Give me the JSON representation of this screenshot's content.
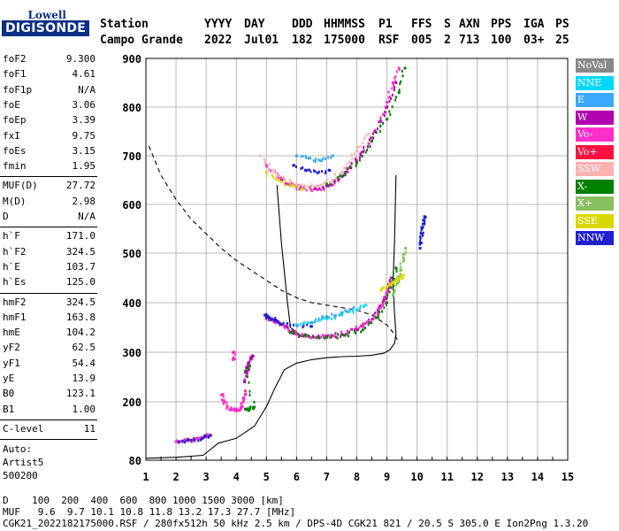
{
  "logo": {
    "top": "Lowell",
    "bottom": "DIGISONDE"
  },
  "header": {
    "row1": [
      {
        "key": "station",
        "text": "Station"
      },
      {
        "key": "yyyy",
        "text": "YYYY"
      },
      {
        "key": "day",
        "text": "DAY"
      },
      {
        "key": "ddd",
        "text": "DDD"
      },
      {
        "key": "hhmmss",
        "text": "HHMMSS"
      },
      {
        "key": "p1",
        "text": "P1"
      },
      {
        "key": "ffs",
        "text": "FFS"
      },
      {
        "key": "s",
        "text": "S"
      },
      {
        "key": "axn",
        "text": "AXN"
      },
      {
        "key": "pps",
        "text": "PPS"
      },
      {
        "key": "iga",
        "text": "IGA"
      },
      {
        "key": "ps",
        "text": "PS"
      }
    ],
    "row2": [
      {
        "key": "station",
        "text": "Campo Grande"
      },
      {
        "key": "yyyy",
        "text": "2022"
      },
      {
        "key": "day",
        "text": "Jul01"
      },
      {
        "key": "ddd",
        "text": "182"
      },
      {
        "key": "hhmmss",
        "text": "175000"
      },
      {
        "key": "p1",
        "text": "RSF"
      },
      {
        "key": "ffs",
        "text": "005"
      },
      {
        "key": "s",
        "text": "2"
      },
      {
        "key": "axn",
        "text": "713"
      },
      {
        "key": "pps",
        "text": "100"
      },
      {
        "key": "iga",
        "text": "03+"
      },
      {
        "key": "ps",
        "text": "25"
      }
    ]
  },
  "params": {
    "group1": [
      {
        "name": "foF2",
        "value": "9.300"
      },
      {
        "name": "foF1",
        "value": "4.61"
      },
      {
        "name": "foF1p",
        "value": "N/A"
      },
      {
        "name": "foE",
        "value": "3.06"
      },
      {
        "name": "foEp",
        "value": "3.39"
      },
      {
        "name": "fxI",
        "value": "9.75"
      },
      {
        "name": "foEs",
        "value": "3.15"
      },
      {
        "name": "fmin",
        "value": "1.95"
      }
    ],
    "group2": [
      {
        "name": "MUF(D)",
        "value": "27.72"
      },
      {
        "name": "M(D)",
        "value": "2.98"
      },
      {
        "name": "D",
        "value": "N/A"
      }
    ],
    "group3": [
      {
        "name": "h`F",
        "value": "171.0"
      },
      {
        "name": "h`F2",
        "value": "324.5"
      },
      {
        "name": "h`E",
        "value": "103.7"
      },
      {
        "name": "h`Es",
        "value": "125.0"
      }
    ],
    "group4": [
      {
        "name": "hmF2",
        "value": "324.5"
      },
      {
        "name": "hmF1",
        "value": "163.8"
      },
      {
        "name": "hmE",
        "value": "104.2"
      },
      {
        "name": "yF2",
        "value": "62.5"
      },
      {
        "name": "yF1",
        "value": "54.4"
      },
      {
        "name": "yE",
        "value": "13.9"
      },
      {
        "name": "B0",
        "value": "123.1"
      },
      {
        "name": "B1",
        "value": "1.00"
      }
    ],
    "group5": [
      {
        "name": "C-level",
        "value": "11"
      }
    ],
    "auto": [
      "Auto:",
      "Artist5",
      "500200"
    ]
  },
  "legend": [
    {
      "label": "NoVal",
      "color": "#888888"
    },
    {
      "label": "NNE",
      "color": "#00d8ff"
    },
    {
      "label": "E",
      "color": "#3aa8ff"
    },
    {
      "label": "W",
      "color": "#b000b0"
    },
    {
      "label": "Vo-",
      "color": "#ff2ec8"
    },
    {
      "label": "Vo+",
      "color": "#ff1040"
    },
    {
      "label": "SSW",
      "color": "#ffb0b0"
    },
    {
      "label": "X-",
      "color": "#008000"
    },
    {
      "label": "X+",
      "color": "#88c060"
    },
    {
      "label": "SSE",
      "color": "#d8d800"
    },
    {
      "label": "NNW",
      "color": "#2020d0"
    }
  ],
  "footer": {
    "line1": "D    100  200  400  600  800 1000 1500 3000 [km]",
    "line2": "MUF   9.6  9.7 10.1 10.8 11.8 13.2 17.3 27.7 [MHz]",
    "line3": "CGK21_2022182175000.RSF / 280fx512h 50 kHz 2.5 km / DPS-4D CGK21 821 / 20.5 S 305.0 E Ion2Png 1.3.20"
  },
  "chart_data": {
    "type": "scatter",
    "xlim": [
      1,
      15
    ],
    "ylim": [
      80,
      900
    ],
    "xticks": [
      "1",
      "2",
      "3",
      "4",
      "5",
      "6",
      "7",
      "8",
      "9",
      "10",
      "11",
      "12",
      "13",
      "14",
      "15"
    ],
    "yticks": [
      "80",
      "200",
      "300",
      "400",
      "500",
      "600",
      "700",
      "800",
      "900"
    ],
    "grid": true,
    "legend_position": "right",
    "series": [
      {
        "name": "Es trace (Vo-)",
        "color": "#ff2ec8",
        "points": [
          [
            2.0,
            118
          ],
          [
            2.2,
            119
          ],
          [
            2.4,
            120
          ],
          [
            2.6,
            122
          ],
          [
            2.8,
            125
          ],
          [
            3.0,
            128
          ],
          [
            3.1,
            132
          ]
        ]
      },
      {
        "name": "Es trace (NNW)",
        "color": "#2020d0",
        "points": [
          [
            2.1,
            118
          ],
          [
            2.5,
            121
          ],
          [
            2.9,
            126
          ],
          [
            3.15,
            131
          ]
        ]
      },
      {
        "name": "E/F1 low trace",
        "color": "#ff2ec8",
        "points": [
          [
            3.55,
            215
          ],
          [
            3.6,
            200
          ],
          [
            3.7,
            190
          ],
          [
            3.8,
            184
          ],
          [
            3.95,
            182
          ],
          [
            4.1,
            183
          ],
          [
            4.2,
            190
          ],
          [
            4.25,
            205
          ],
          [
            4.3,
            222
          ]
        ]
      },
      {
        "name": "E/F1 low trace (X-)",
        "color": "#008000",
        "points": [
          [
            4.3,
            185
          ],
          [
            4.45,
            186
          ],
          [
            4.6,
            189
          ],
          [
            4.3,
            260
          ],
          [
            4.45,
            272
          ]
        ]
      },
      {
        "name": "F1 cusp",
        "color": "#b000b0",
        "points": [
          [
            4.28,
            240
          ],
          [
            4.35,
            262
          ],
          [
            4.42,
            278
          ],
          [
            4.5,
            288
          ],
          [
            4.55,
            292
          ]
        ]
      },
      {
        "name": "F1 cusp (Vo-)",
        "color": "#ff2ec8",
        "points": [
          [
            3.9,
            285
          ],
          [
            3.93,
            300
          ]
        ]
      },
      {
        "name": "F2 O-trace (W)",
        "color": "#b000b0",
        "points": [
          [
            5.0,
            370
          ],
          [
            5.2,
            366
          ],
          [
            5.4,
            360
          ],
          [
            5.7,
            350
          ],
          [
            5.9,
            338
          ],
          [
            6.2,
            333
          ],
          [
            6.6,
            330
          ],
          [
            7.0,
            331
          ],
          [
            7.5,
            336
          ],
          [
            8.0,
            346
          ],
          [
            8.4,
            360
          ],
          [
            8.7,
            380
          ],
          [
            8.9,
            405
          ],
          [
            9.05,
            430
          ],
          [
            9.15,
            450
          ]
        ]
      },
      {
        "name": "F2 O-trace (Vo-)",
        "color": "#ff2ec8",
        "points": [
          [
            5.3,
            360
          ],
          [
            5.6,
            352
          ],
          [
            6.0,
            336
          ],
          [
            6.4,
            332
          ],
          [
            6.8,
            330
          ],
          [
            7.2,
            333
          ],
          [
            7.7,
            340
          ],
          [
            8.2,
            352
          ],
          [
            8.6,
            372
          ],
          [
            8.85,
            395
          ],
          [
            9.0,
            420
          ],
          [
            9.1,
            440
          ]
        ]
      },
      {
        "name": "F2 O-trace (NNW)",
        "color": "#2020d0",
        "points": [
          [
            4.95,
            375
          ],
          [
            5.1,
            370
          ],
          [
            5.3,
            364
          ],
          [
            5.5,
            356
          ],
          [
            6.0,
            355
          ],
          [
            6.5,
            352
          ]
        ]
      },
      {
        "name": "F2 X-trace (X-)",
        "color": "#008000",
        "points": [
          [
            5.8,
            340
          ],
          [
            6.3,
            334
          ],
          [
            7.0,
            330
          ],
          [
            7.6,
            334
          ],
          [
            8.2,
            345
          ],
          [
            8.7,
            370
          ],
          [
            9.0,
            400
          ],
          [
            9.2,
            440
          ],
          [
            9.3,
            470
          ]
        ]
      },
      {
        "name": "F2 X-trace (X+)",
        "color": "#88c060",
        "points": [
          [
            9.2,
            415
          ],
          [
            9.35,
            440
          ],
          [
            9.45,
            465
          ],
          [
            9.55,
            490
          ],
          [
            9.62,
            510
          ]
        ]
      },
      {
        "name": "Oblique (NNE)",
        "color": "#00d8ff",
        "points": [
          [
            6.0,
            355
          ],
          [
            6.5,
            360
          ],
          [
            7.0,
            368
          ],
          [
            7.5,
            375
          ],
          [
            8.0,
            385
          ],
          [
            8.3,
            395
          ]
        ]
      },
      {
        "name": "Oblique (E)",
        "color": "#3aa8ff",
        "points": [
          [
            6.5,
            360
          ],
          [
            7.0,
            372
          ],
          [
            7.5,
            380
          ],
          [
            7.9,
            390
          ]
        ]
      },
      {
        "name": "Oblique (SSE)",
        "color": "#d8d800",
        "points": [
          [
            8.8,
            425
          ],
          [
            9.0,
            432
          ],
          [
            9.2,
            440
          ],
          [
            9.4,
            448
          ],
          [
            9.55,
            455
          ]
        ]
      },
      {
        "name": "High trace (NNW)",
        "color": "#2020d0",
        "points": [
          [
            10.1,
            520
          ],
          [
            10.15,
            540
          ],
          [
            10.2,
            560
          ],
          [
            10.25,
            575
          ],
          [
            10.1,
            510
          ]
        ]
      },
      {
        "name": "Multi-hop (Vo-)",
        "color": "#ff2ec8",
        "points": [
          [
            5.0,
            680
          ],
          [
            5.4,
            655
          ],
          [
            5.8,
            640
          ],
          [
            6.2,
            632
          ],
          [
            6.7,
            630
          ],
          [
            7.2,
            640
          ],
          [
            7.6,
            665
          ],
          [
            8.0,
            690
          ],
          [
            8.4,
            725
          ],
          [
            8.8,
            770
          ],
          [
            9.0,
            810
          ],
          [
            9.2,
            850
          ],
          [
            9.4,
            880
          ]
        ]
      },
      {
        "name": "Multi-hop (W)",
        "color": "#b000b0",
        "points": [
          [
            5.5,
            650
          ],
          [
            6.0,
            636
          ],
          [
            6.6,
            632
          ],
          [
            7.0,
            638
          ],
          [
            7.4,
            652
          ],
          [
            7.8,
            675
          ],
          [
            8.2,
            708
          ],
          [
            8.6,
            750
          ],
          [
            9.0,
            800
          ],
          [
            9.3,
            850
          ]
        ]
      },
      {
        "name": "Multi-hop (X-)",
        "color": "#008000",
        "points": [
          [
            7.0,
            642
          ],
          [
            7.5,
            658
          ],
          [
            8.0,
            685
          ],
          [
            8.5,
            730
          ],
          [
            9.0,
            775
          ],
          [
            9.4,
            830
          ],
          [
            9.6,
            880
          ]
        ]
      },
      {
        "name": "Multi-hop (SSE)",
        "color": "#d8d800",
        "points": [
          [
            5.0,
            665
          ],
          [
            5.4,
            650
          ],
          [
            5.8,
            638
          ],
          [
            6.2,
            632
          ]
        ]
      },
      {
        "name": "Multi-hop (SSW)",
        "color": "#ffb0b0",
        "points": [
          [
            4.8,
            700
          ],
          [
            5.2,
            670
          ],
          [
            5.6,
            650
          ],
          [
            6.0,
            640
          ],
          [
            6.4,
            636
          ],
          [
            6.8,
            640
          ],
          [
            7.2,
            650
          ],
          [
            7.6,
            675
          ],
          [
            8.0,
            710
          ],
          [
            8.4,
            745
          ]
        ]
      },
      {
        "name": "Multi-hop (E)",
        "color": "#3aa8ff",
        "points": [
          [
            6.0,
            700
          ],
          [
            6.4,
            695
          ],
          [
            6.8,
            690
          ],
          [
            7.2,
            700
          ]
        ]
      },
      {
        "name": "Multi-hop (NNW)",
        "color": "#2020d0",
        "points": [
          [
            5.9,
            680
          ],
          [
            6.3,
            670
          ],
          [
            6.7,
            665
          ],
          [
            7.1,
            670
          ]
        ]
      }
    ],
    "lines": [
      {
        "name": "MUF dashed",
        "style": "dashed",
        "points": [
          [
            1.1,
            720
          ],
          [
            1.5,
            660
          ],
          [
            2.0,
            610
          ],
          [
            2.5,
            570
          ],
          [
            3.0,
            540
          ],
          [
            3.5,
            510
          ],
          [
            4.0,
            485
          ],
          [
            4.5,
            465
          ],
          [
            5.0,
            445
          ],
          [
            5.5,
            425
          ],
          [
            6.0,
            410
          ],
          [
            6.5,
            400
          ],
          [
            7.0,
            395
          ],
          [
            7.5,
            390
          ],
          [
            8.0,
            385
          ],
          [
            8.5,
            375
          ],
          [
            9.0,
            355
          ],
          [
            9.2,
            340
          ],
          [
            9.4,
            320
          ]
        ]
      },
      {
        "name": "True height profile",
        "style": "solid",
        "points": [
          [
            1.0,
            84
          ],
          [
            2.0,
            86
          ],
          [
            2.9,
            90
          ],
          [
            3.1,
            100
          ],
          [
            3.4,
            115
          ],
          [
            4.0,
            125
          ],
          [
            4.6,
            150
          ],
          [
            5.0,
            190
          ],
          [
            5.3,
            230
          ],
          [
            5.6,
            265
          ],
          [
            6.0,
            278
          ],
          [
            6.5,
            285
          ],
          [
            7.0,
            289
          ],
          [
            7.5,
            291
          ],
          [
            8.0,
            292
          ],
          [
            8.5,
            294
          ],
          [
            8.9,
            298
          ],
          [
            9.1,
            305
          ],
          [
            9.25,
            318
          ],
          [
            9.3,
            335
          ],
          [
            9.25,
            380
          ],
          [
            9.2,
            440
          ],
          [
            9.25,
            520
          ],
          [
            9.3,
            660
          ]
        ]
      },
      {
        "name": "Reflection line",
        "style": "solid",
        "points": [
          [
            5.35,
            640
          ],
          [
            5.5,
            520
          ],
          [
            5.7,
            400
          ],
          [
            5.8,
            350
          ],
          [
            6.05,
            338
          ]
        ]
      }
    ]
  }
}
